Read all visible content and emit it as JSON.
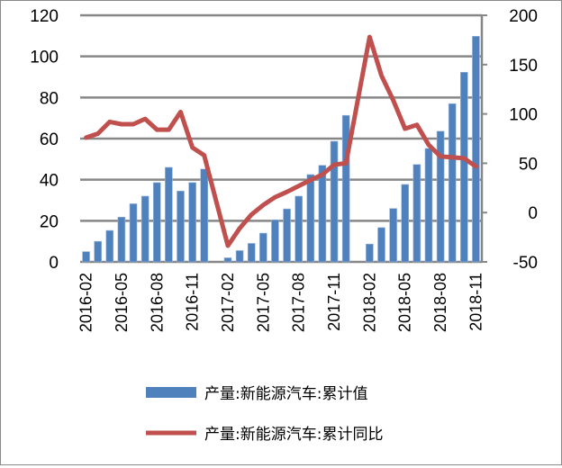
{
  "chart_data": {
    "type": "bar+line",
    "categories": [
      "2016-02",
      "2016-03",
      "2016-04",
      "2016-05",
      "2016-06",
      "2016-07",
      "2016-08",
      "2016-09",
      "2016-10",
      "2016-11",
      "2016-12",
      "2017-01",
      "2017-02",
      "2017-03",
      "2017-04",
      "2017-05",
      "2017-06",
      "2017-07",
      "2017-08",
      "2017-09",
      "2017-10",
      "2017-11",
      "2017-12",
      "2018-01",
      "2018-02",
      "2018-03",
      "2018-04",
      "2018-05",
      "2018-06",
      "2018-07",
      "2018-08",
      "2018-09",
      "2018-10",
      "2018-11"
    ],
    "x_tick_labels": [
      "2016-02",
      "2016-05",
      "2016-08",
      "2016-11",
      "2017-02",
      "2017-05",
      "2017-08",
      "2017-11",
      "2018-02",
      "2018-05",
      "2018-08",
      "2018-11"
    ],
    "series": [
      {
        "name": "产量:新能源汽车:累计值",
        "type": "bar",
        "axis": "left",
        "color": "#4f81bd",
        "values": [
          5,
          10,
          15.3,
          21.8,
          28.3,
          32,
          38.6,
          46,
          34.5,
          38.6,
          45.2,
          null,
          2,
          5.5,
          9,
          14,
          20.5,
          25.8,
          32,
          42.5,
          47,
          58.7,
          71.3,
          null,
          8.7,
          16.7,
          26,
          37.7,
          47.4,
          55.2,
          63.6,
          77,
          92.3,
          109.8
        ]
      },
      {
        "name": "产量:新能源汽车:累计同比",
        "type": "line",
        "axis": "right",
        "color": "#c0504d",
        "values": [
          76,
          80,
          92,
          89.6,
          89.6,
          95,
          84,
          84,
          102,
          66,
          58,
          null,
          -33.6,
          -16,
          -2,
          7.7,
          15.6,
          21,
          27,
          33,
          38.5,
          48.5,
          50,
          null,
          178,
          139,
          114,
          85,
          89,
          68.6,
          56.8,
          56,
          55,
          46.7
        ]
      }
    ],
    "left_axis": {
      "ylim": [
        0,
        120
      ],
      "ticks": [
        "0",
        "20",
        "40",
        "60",
        "80",
        "100",
        "120"
      ]
    },
    "right_axis": {
      "ylim": [
        -50,
        200
      ],
      "ticks": [
        "-50",
        "0",
        "50",
        "100",
        "150",
        "200"
      ]
    },
    "grid": true,
    "legend_position": "bottom"
  }
}
